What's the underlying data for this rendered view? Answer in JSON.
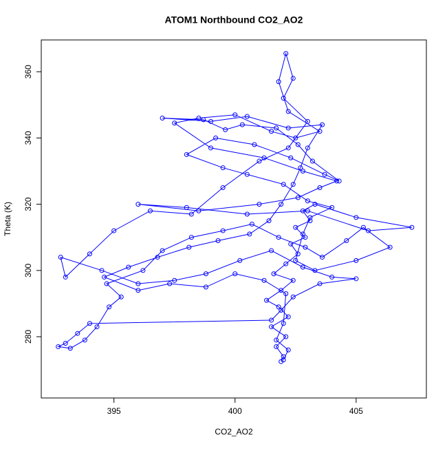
{
  "chart_data": {
    "type": "scatter",
    "title": "ATOM1 Northbound CO2_AO2",
    "x_label": "CO2_AO2",
    "y_label": "Theta (K)",
    "color": "#0000ff",
    "lines": true,
    "x": [
      401.9,
      402.0,
      401.7,
      402.1,
      401.5,
      402.2,
      401.8,
      401.3,
      401.9,
      402.4,
      401.6,
      402.1,
      402.6,
      402.3,
      402.9,
      402.5,
      403.1,
      402.8,
      403.3,
      405.0,
      407.3,
      405.5,
      403.0,
      400.5,
      398.0,
      396.0,
      398.5,
      401.0,
      402.6,
      403.5,
      404.2,
      402.8,
      401.2,
      399.0,
      397.5,
      398.5,
      400.0,
      401.5,
      402.5,
      403.5,
      402.2,
      401.8,
      402.1,
      402.4,
      402.0,
      403.0,
      402.2,
      401.0,
      399.5,
      398.2,
      396.5,
      395.0,
      394.0,
      393.0,
      392.8,
      394.5,
      396.0,
      397.5,
      398.8,
      400.2,
      401.5,
      402.8,
      404.0,
      405.0,
      403.5,
      402.4,
      401.9,
      401.5,
      394.0,
      393.5,
      393.0,
      392.7,
      393.2,
      393.8,
      394.3,
      394.8,
      395.3,
      394.7,
      396.2,
      397.0,
      398.2,
      399.5,
      400.7,
      401.8,
      402.9,
      403.6,
      404.6,
      405.3,
      406.4,
      405.0,
      403.3,
      402.5,
      402.8,
      403.1,
      404.0,
      403.0,
      402.0,
      400.5,
      399.5,
      398.0,
      399.2,
      400.8,
      402.3,
      403.7,
      404.3,
      403.2,
      402.6,
      401.7,
      400.3,
      399.6,
      398.7,
      397.0,
      399.0,
      400.5,
      402.2,
      403.6,
      403.0,
      402.7,
      402.4,
      401.9,
      401.4,
      400.6,
      399.3,
      398.1,
      396.8,
      395.6,
      394.6,
      396.0,
      397.3,
      398.8,
      400.0,
      401.2,
      402.1,
      402.0,
      401.7,
      402.2,
      402.0
    ],
    "values": [
      272.5,
      274,
      277,
      280,
      283,
      286,
      289,
      291,
      294,
      297,
      299,
      302,
      305,
      308,
      310,
      313,
      315,
      318,
      320,
      316,
      313,
      312,
      318,
      317,
      319,
      320,
      318,
      320,
      322,
      325,
      327,
      330,
      334,
      337,
      344.5,
      346,
      347,
      342,
      340,
      342,
      348,
      357,
      365.5,
      358,
      352,
      345,
      337,
      333,
      325,
      317,
      318,
      312,
      305,
      298,
      304,
      300,
      296,
      297,
      299,
      303,
      306,
      301,
      298,
      297.5,
      296,
      292,
      288,
      285,
      284,
      281,
      278,
      277,
      276.5,
      279,
      283,
      289,
      292,
      296,
      300,
      306,
      310,
      312,
      314,
      310,
      307,
      304,
      309,
      313,
      307,
      303,
      300,
      303,
      311,
      316,
      319,
      321,
      326,
      329,
      331,
      335,
      340,
      338,
      334,
      329,
      327,
      333,
      338,
      343,
      344,
      342.5,
      345.5,
      346,
      345,
      346.5,
      343,
      344,
      337,
      331,
      326,
      320,
      315,
      311,
      309,
      307,
      304,
      301,
      298,
      294,
      296,
      295,
      299,
      297,
      293,
      284,
      279,
      276,
      273
    ],
    "xlim": [
      392.0,
      407.9
    ],
    "ylim": [
      261.5,
      369.6
    ],
    "xticks": [
      395,
      400,
      405
    ],
    "yticks": [
      280,
      300,
      320,
      340,
      360
    ]
  }
}
